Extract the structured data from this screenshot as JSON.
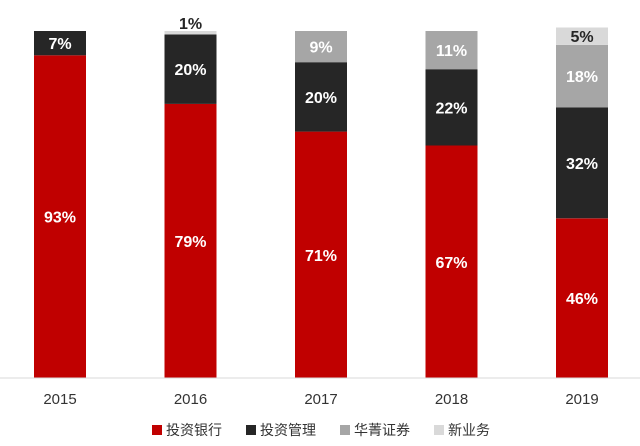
{
  "chart_data": {
    "type": "bar",
    "stacked": true,
    "categories": [
      "2015",
      "2016",
      "2017",
      "2018",
      "2019"
    ],
    "series": [
      {
        "name": "投资银行",
        "color": "#c00000",
        "values": [
          93,
          79,
          71,
          67,
          46
        ],
        "labels": [
          "93%",
          "79%",
          "71%",
          "67%",
          "46%"
        ]
      },
      {
        "name": "投资管理",
        "color": "#262626",
        "values": [
          7,
          20,
          20,
          22,
          32
        ],
        "labels": [
          "7%",
          "20%",
          "20%",
          "22%",
          "32%"
        ]
      },
      {
        "name": "华菁证券",
        "color": "#a6a6a6",
        "values": [
          0,
          0,
          9,
          11,
          18
        ],
        "labels": [
          "",
          "",
          "9%",
          "11%",
          "18%"
        ]
      },
      {
        "name": "新业务",
        "color": "#d9d9d9",
        "values": [
          0,
          1,
          0,
          0,
          5
        ],
        "labels": [
          "",
          "1%",
          "",
          "",
          "5%"
        ]
      }
    ],
    "ylim": [
      0,
      100
    ],
    "grid": false,
    "legend_position": "bottom"
  }
}
